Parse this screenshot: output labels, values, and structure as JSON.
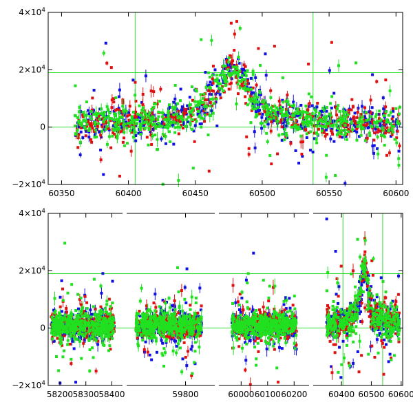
{
  "chart_data": [
    {
      "type": "scatter",
      "panel": "top",
      "xlim": [
        60340,
        60605
      ],
      "ylim": [
        -20000,
        40000
      ],
      "x_ticks": [
        60350,
        60400,
        60450,
        60500,
        60550,
        60600
      ],
      "y_ticks": [
        {
          "value": -20000,
          "mant": "−2×10",
          "exp": "4"
        },
        {
          "value": 0,
          "mant": "0",
          "exp": ""
        },
        {
          "value": 20000,
          "mant": "2×10",
          "exp": "4"
        },
        {
          "value": 40000,
          "mant": "4×10",
          "exp": "4"
        }
      ],
      "reference_lines": {
        "horizontal": [
          0,
          19000
        ],
        "vertical": [
          60405,
          60538
        ]
      },
      "series_colors": {
        "blue": "#1010e0",
        "red": "#e01010",
        "green": "#20e020"
      },
      "profile": {
        "baseline": 1000,
        "peak_x": 60477,
        "peak_y": 20000,
        "width": 15,
        "scatter": 3500
      },
      "bands": [
        [
          60360,
          60605
        ]
      ]
    },
    {
      "type": "scatter",
      "panel": "bottom",
      "segments": [
        {
          "xlim": [
            58155,
            58420
          ],
          "x_ticks": [
            58200,
            58300,
            58400
          ]
        },
        {
          "xlim": [
            59605,
            59870
          ],
          "x_ticks": [
            59800
          ]
        },
        {
          "xlim": [
            59955,
            60220
          ],
          "x_ticks": [
            60000,
            60100,
            60200
          ]
        },
        {
          "xlim": [
            60340,
            60605
          ],
          "x_ticks": [
            60400,
            60500,
            60600
          ]
        }
      ],
      "ylim": [
        -20000,
        40000
      ],
      "y_ticks": [
        {
          "value": -20000,
          "mant": "−2×10",
          "exp": "4"
        },
        {
          "value": 0,
          "mant": "0",
          "exp": ""
        },
        {
          "value": 20000,
          "mant": "2×10",
          "exp": "4"
        },
        {
          "value": 40000,
          "mant": "4×10",
          "exp": "4"
        }
      ],
      "reference_lines": {
        "horizontal": [
          0,
          19000
        ],
        "vertical": [
          60405,
          60538
        ]
      },
      "series_colors": {
        "blue": "#1010e0",
        "red": "#e01010",
        "green": "#20e020"
      },
      "profile": {
        "baseline": 1000,
        "peak_x": 60477,
        "peak_y": 20000,
        "width": 15,
        "scatter": 3500
      }
    }
  ]
}
